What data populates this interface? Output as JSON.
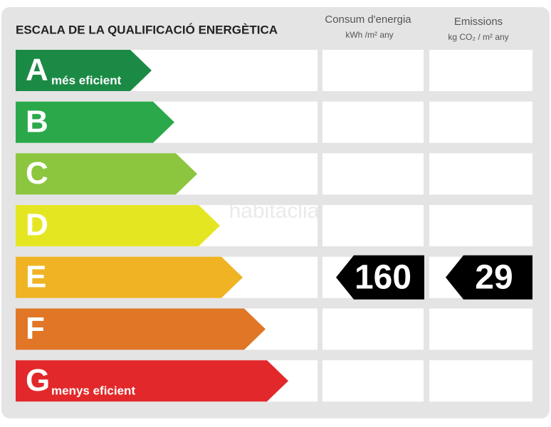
{
  "header": {
    "title": "ESCALA DE LA QUALIFICACIÓ ENERGÈTICA",
    "columns": [
      {
        "title": "Consum d'energia",
        "unit": "kWh /m² any"
      },
      {
        "title": "Emissions",
        "unit": "kg CO₂ / m² any"
      }
    ]
  },
  "watermark": "habitaclia",
  "rows": [
    {
      "letter": "A",
      "label": "més eficient",
      "color": "#1b8a45"
    },
    {
      "letter": "B",
      "color": "#2ba84a"
    },
    {
      "letter": "C",
      "color": "#8cc63f"
    },
    {
      "letter": "D",
      "color": "#e5e622"
    },
    {
      "letter": "E",
      "color": "#efb323",
      "consumption": 160,
      "emissions": 29
    },
    {
      "letter": "F",
      "color": "#e07626"
    },
    {
      "letter": "G",
      "label": "menys eficient",
      "color": "#e2282a"
    }
  ]
}
